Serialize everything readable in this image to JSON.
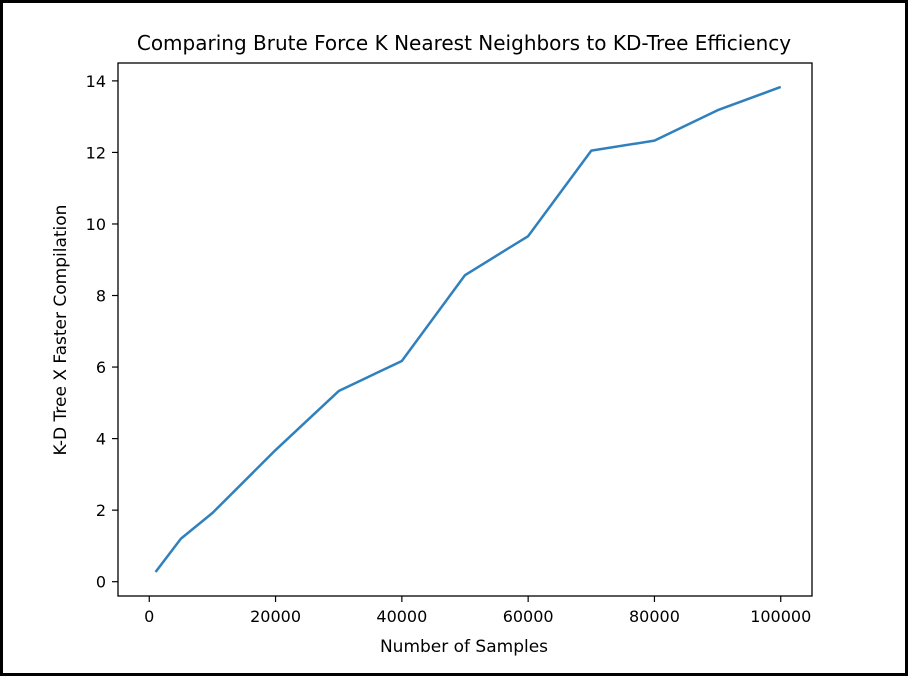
{
  "chart_data": {
    "type": "line",
    "title": "Comparing Brute Force K Nearest Neighbors to KD-Tree Efficiency",
    "xlabel": "Number of Samples",
    "ylabel": "K-D Tree X Faster Compilation",
    "xlim": [
      -4950,
      104950
    ],
    "ylim": [
      -0.4,
      14.5
    ],
    "xticks": [
      0,
      20000,
      40000,
      60000,
      80000,
      100000
    ],
    "xtick_labels": [
      "0",
      "20000",
      "40000",
      "60000",
      "80000",
      "100000"
    ],
    "yticks": [
      0,
      2,
      4,
      6,
      8,
      10,
      12,
      14
    ],
    "ytick_labels": [
      "0",
      "2",
      "4",
      "6",
      "8",
      "10",
      "12",
      "14"
    ],
    "grid": false,
    "legend": "none",
    "line_color": "#3080bd",
    "series": [
      {
        "x": [
          1000,
          5000,
          10000,
          20000,
          30000,
          40000,
          50000,
          60000,
          70000,
          80000,
          90000,
          100000
        ],
        "y": [
          0.27,
          1.2,
          1.92,
          3.68,
          5.33,
          6.17,
          8.57,
          9.66,
          12.05,
          12.33,
          13.18,
          13.83
        ]
      }
    ]
  }
}
